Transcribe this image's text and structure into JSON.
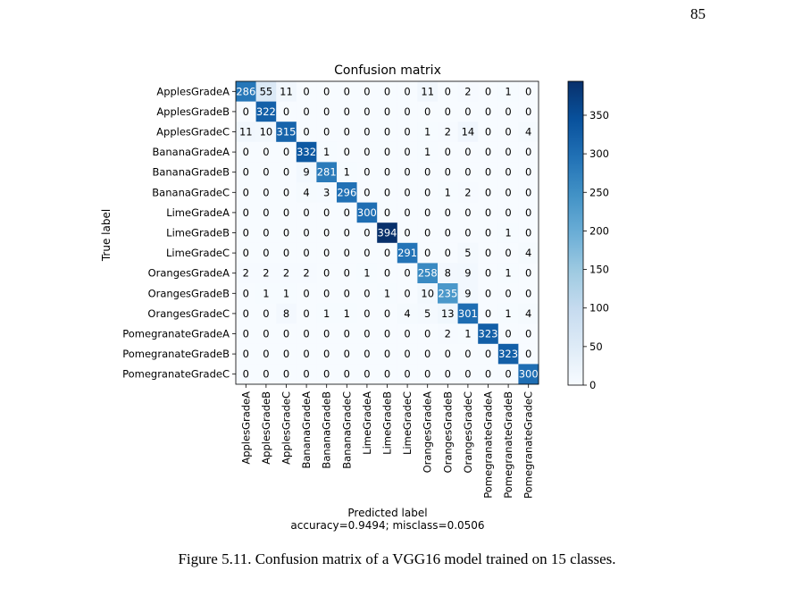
{
  "page": {
    "number": "85",
    "caption": "Figure 5.11. Confusion matrix of a VGG16 model trained on 15 classes."
  },
  "chart_data": {
    "type": "heatmap",
    "title": "Confusion matrix",
    "xlabel": "Predicted label",
    "xlabel_note": "accuracy=0.9494; misclass=0.0506",
    "ylabel": "True label",
    "colormap": "Blues",
    "colorbar": {
      "min": 0,
      "max": 394,
      "ticks": [
        0,
        50,
        100,
        150,
        200,
        250,
        300,
        350
      ]
    },
    "labels": [
      "ApplesGradeA",
      "ApplesGradeB",
      "ApplesGradeC",
      "BananaGradeA",
      "BananaGradeB",
      "BananaGradeC",
      "LimeGradeA",
      "LimeGradeB",
      "LimeGradeC",
      "OrangesGradeA",
      "OrangesGradeB",
      "OrangesGradeC",
      "PomegranateGradeA",
      "PomegranateGradeB",
      "PomegranateGradeC"
    ],
    "matrix": [
      [
        286,
        55,
        11,
        0,
        0,
        0,
        0,
        0,
        0,
        11,
        0,
        2,
        0,
        1,
        0
      ],
      [
        0,
        322,
        0,
        0,
        0,
        0,
        0,
        0,
        0,
        0,
        0,
        0,
        0,
        0,
        0
      ],
      [
        11,
        10,
        315,
        0,
        0,
        0,
        0,
        0,
        0,
        1,
        2,
        14,
        0,
        0,
        4
      ],
      [
        0,
        0,
        0,
        332,
        1,
        0,
        0,
        0,
        0,
        1,
        0,
        0,
        0,
        0,
        0
      ],
      [
        0,
        0,
        0,
        9,
        281,
        1,
        0,
        0,
        0,
        0,
        0,
        0,
        0,
        0,
        0
      ],
      [
        0,
        0,
        0,
        4,
        3,
        296,
        0,
        0,
        0,
        0,
        1,
        2,
        0,
        0,
        0
      ],
      [
        0,
        0,
        0,
        0,
        0,
        0,
        300,
        0,
        0,
        0,
        0,
        0,
        0,
        0,
        0
      ],
      [
        0,
        0,
        0,
        0,
        0,
        0,
        0,
        394,
        0,
        0,
        0,
        0,
        0,
        1,
        0
      ],
      [
        0,
        0,
        0,
        0,
        0,
        0,
        0,
        0,
        291,
        0,
        0,
        5,
        0,
        0,
        4
      ],
      [
        2,
        2,
        2,
        2,
        0,
        0,
        1,
        0,
        0,
        258,
        8,
        9,
        0,
        1,
        0
      ],
      [
        0,
        1,
        1,
        0,
        0,
        0,
        0,
        1,
        0,
        10,
        235,
        9,
        0,
        0,
        0
      ],
      [
        0,
        0,
        8,
        0,
        1,
        1,
        0,
        0,
        4,
        5,
        13,
        301,
        0,
        1,
        4
      ],
      [
        0,
        0,
        0,
        0,
        0,
        0,
        0,
        0,
        0,
        0,
        2,
        1,
        323,
        0,
        0
      ],
      [
        0,
        0,
        0,
        0,
        0,
        0,
        0,
        0,
        0,
        0,
        0,
        0,
        0,
        323,
        0
      ],
      [
        0,
        0,
        0,
        0,
        0,
        0,
        0,
        0,
        0,
        0,
        0,
        0,
        0,
        0,
        300
      ]
    ]
  }
}
